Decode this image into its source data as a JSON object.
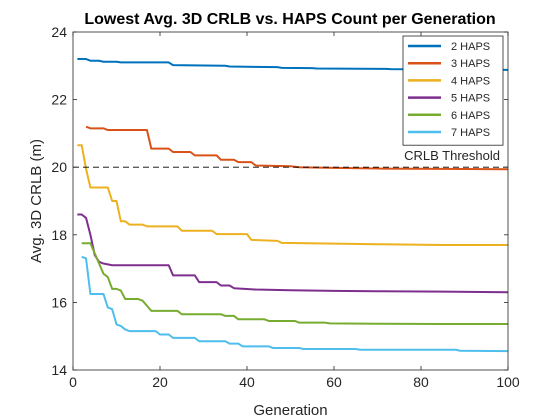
{
  "chart_data": {
    "type": "line",
    "title": "Lowest Avg. 3D CRLB vs. HAPS Count per Generation",
    "xlabel": "Generation",
    "ylabel": "Avg. 3D CRLB (m)",
    "xlim": [
      0,
      100
    ],
    "ylim": [
      14,
      24
    ],
    "xticks": [
      "0",
      "20",
      "40",
      "60",
      "80",
      "100"
    ],
    "yticks": [
      "14",
      "16",
      "18",
      "20",
      "22",
      "24"
    ],
    "grid": false,
    "box": true,
    "legend_position": "top-right",
    "threshold": {
      "value": 20,
      "label": "CRLB Threshold",
      "style": "dashed",
      "color": "#000000"
    },
    "series": [
      {
        "name": "2 HAPS",
        "color": "#0072BD",
        "x": [
          1,
          3,
          4,
          6,
          7,
          10,
          11,
          15,
          16,
          22,
          23,
          35,
          36,
          47,
          48,
          55,
          56,
          72,
          73,
          100
        ],
        "y": [
          23.2,
          23.2,
          23.15,
          23.15,
          23.12,
          23.12,
          23.1,
          23.1,
          23.1,
          23.1,
          23.02,
          23.0,
          22.98,
          22.96,
          22.94,
          22.93,
          22.92,
          22.91,
          22.9,
          22.88
        ]
      },
      {
        "name": "3 HAPS",
        "color": "#D95319",
        "x": [
          3,
          4,
          7,
          8,
          17,
          18,
          22,
          23,
          27,
          28,
          33,
          34,
          37,
          38,
          41,
          42,
          50,
          52,
          60,
          70,
          85,
          100
        ],
        "y": [
          21.2,
          21.15,
          21.15,
          21.1,
          21.1,
          20.55,
          20.55,
          20.45,
          20.45,
          20.35,
          20.35,
          20.22,
          20.22,
          20.15,
          20.15,
          20.05,
          20.03,
          20.0,
          19.98,
          19.96,
          19.95,
          19.94
        ]
      },
      {
        "name": "4 HAPS",
        "color": "#EDB120",
        "x": [
          1,
          2,
          3,
          4,
          8,
          9,
          10,
          11,
          12,
          13,
          16,
          17,
          24,
          25,
          32,
          33,
          40,
          41,
          47,
          48,
          60,
          70,
          85,
          100
        ],
        "y": [
          20.65,
          20.65,
          19.95,
          19.4,
          19.4,
          19.0,
          19.0,
          18.4,
          18.4,
          18.3,
          18.3,
          18.25,
          18.25,
          18.12,
          18.12,
          18.02,
          18.02,
          17.85,
          17.82,
          17.76,
          17.74,
          17.72,
          17.7,
          17.7
        ]
      },
      {
        "name": "5 HAPS",
        "color": "#7E2F8E",
        "x": [
          1,
          2,
          3,
          4,
          5,
          6,
          7,
          9,
          12,
          13,
          22,
          23,
          28,
          29,
          33,
          34,
          36,
          37,
          42,
          50,
          60,
          70,
          85,
          100
        ],
        "y": [
          18.6,
          18.6,
          18.5,
          18.0,
          17.4,
          17.2,
          17.15,
          17.1,
          17.1,
          17.1,
          17.1,
          16.8,
          16.8,
          16.6,
          16.6,
          16.5,
          16.5,
          16.42,
          16.38,
          16.36,
          16.34,
          16.33,
          16.32,
          16.3
        ]
      },
      {
        "name": "6 HAPS",
        "color": "#77AC30",
        "x": [
          2,
          4,
          7,
          8,
          9,
          10,
          11,
          12,
          15,
          16,
          17,
          18,
          24,
          25,
          34,
          35,
          37,
          38,
          44,
          45,
          51,
          52,
          58,
          59,
          70,
          85,
          100
        ],
        "y": [
          17.75,
          17.75,
          16.85,
          16.75,
          16.4,
          16.4,
          16.35,
          16.1,
          16.1,
          16.05,
          15.9,
          15.75,
          15.75,
          15.65,
          15.65,
          15.6,
          15.6,
          15.5,
          15.5,
          15.45,
          15.45,
          15.4,
          15.4,
          15.38,
          15.37,
          15.36,
          15.36
        ]
      },
      {
        "name": "7 HAPS",
        "color": "#4DBEEE",
        "x": [
          2,
          3,
          4,
          5,
          7,
          8,
          9,
          10,
          11,
          12,
          13,
          19,
          20,
          22,
          23,
          28,
          29,
          35,
          36,
          38,
          39,
          45,
          46,
          52,
          53,
          65,
          66,
          88,
          89,
          100
        ],
        "y": [
          17.35,
          17.3,
          16.25,
          16.25,
          16.25,
          15.85,
          15.8,
          15.35,
          15.3,
          15.2,
          15.15,
          15.15,
          15.05,
          15.05,
          14.95,
          14.95,
          14.85,
          14.85,
          14.78,
          14.78,
          14.7,
          14.7,
          14.65,
          14.65,
          14.62,
          14.62,
          14.6,
          14.6,
          14.57,
          14.56
        ]
      }
    ]
  }
}
